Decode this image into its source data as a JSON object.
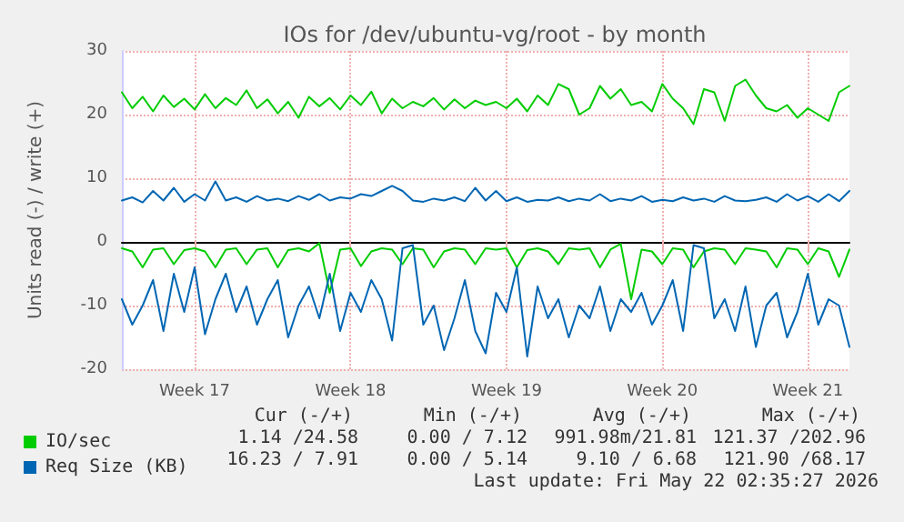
{
  "chart_data": {
    "type": "line",
    "title": "IOs for /dev/ubuntu-vg/root - by month",
    "ylabel": "Units read (-) / write (+)",
    "categories": [
      null,
      null,
      null,
      null,
      null,
      null,
      null,
      "Week 17",
      null,
      null,
      null,
      null,
      null,
      null,
      null,
      null,
      null,
      null,
      null,
      null,
      null,
      null,
      "Week 18",
      null,
      null,
      null,
      null,
      null,
      null,
      null,
      null,
      null,
      null,
      null,
      null,
      null,
      null,
      "Week 19",
      null,
      null,
      null,
      null,
      null,
      null,
      null,
      null,
      null,
      null,
      null,
      null,
      null,
      null,
      "Week 20",
      null,
      null,
      null,
      null,
      null,
      null,
      null,
      null,
      null,
      null,
      null,
      null,
      null,
      "Week 21",
      null,
      null,
      null,
      null
    ],
    "series": [
      {
        "name": "IO/sec",
        "color": "#00cc00",
        "values": [
          23.5,
          21,
          22.8,
          20.5,
          23,
          21.2,
          22.5,
          20.8,
          23.2,
          21,
          22.6,
          21.5,
          23.8,
          21,
          22.4,
          20.2,
          22,
          19.5,
          22.8,
          21.3,
          22.6,
          20.8,
          23,
          21.5,
          23.6,
          20.2,
          22.5,
          21,
          22,
          21.3,
          22.6,
          20.8,
          22.4,
          21,
          22.2,
          21.5,
          22,
          21,
          22.5,
          20.5,
          23,
          21.5,
          24.8,
          24,
          20,
          21,
          24.5,
          22.5,
          24,
          21.5,
          22,
          20.5,
          24.8,
          22.5,
          21,
          18.5,
          24,
          23.5,
          19,
          24.5,
          25.5,
          23,
          21,
          20.5,
          21.5,
          19.5,
          21,
          20,
          19,
          23.5,
          24.5
        ]
      },
      {
        "color": "#00cc00",
        "values": [
          -1,
          -1.5,
          -4,
          -1.2,
          -1,
          -3.5,
          -1.3,
          -1,
          -1.5,
          -4,
          -1.2,
          -1,
          -3.5,
          -1.2,
          -1,
          -4,
          -1.3,
          -1,
          -1.5,
          -0.2,
          -8,
          -1.2,
          -1,
          -3.8,
          -1.5,
          -1,
          -1.2,
          -3.5,
          -1,
          -1.2,
          -4,
          -1.5,
          -1,
          -1.2,
          -3.5,
          -1,
          -1.2,
          -1,
          -4,
          -1.3,
          -1,
          -1.5,
          -3.5,
          -1,
          -1.2,
          -1,
          -4,
          -1.2,
          -0.3,
          -9,
          -1.2,
          -1.5,
          -3.5,
          -1,
          -1.2,
          -4,
          -1.5,
          -1,
          -1.2,
          -3.5,
          -1,
          -1.2,
          -1.5,
          -4,
          -1,
          -1.2,
          -3.5,
          -1,
          -1.5,
          -5.5,
          -1.2
        ]
      },
      {
        "name": "Req Size (KB)",
        "color": "#0066b3",
        "values": [
          6.5,
          7,
          6.2,
          8,
          6.5,
          8.5,
          6.3,
          7.5,
          6.5,
          9.5,
          6.5,
          7,
          6.3,
          7.2,
          6.5,
          6.8,
          6.4,
          7.2,
          6.6,
          7.5,
          6.5,
          7,
          6.8,
          7.5,
          7.2,
          8,
          8.8,
          8,
          6.5,
          6.3,
          6.8,
          6.5,
          7,
          6.4,
          8.5,
          6.5,
          8,
          6.4,
          7,
          6.3,
          6.6,
          6.5,
          7,
          6.4,
          6.8,
          6.5,
          7.5,
          6.4,
          6.8,
          6.5,
          7.2,
          6.3,
          6.6,
          6.4,
          7,
          6.5,
          6.8,
          6.3,
          7.2,
          6.5,
          6.4,
          6.6,
          7,
          6.3,
          7.5,
          6.5,
          7.2,
          6.3,
          7.5,
          6.4,
          8
        ]
      },
      {
        "color": "#0066b3",
        "values": [
          -9,
          -13,
          -10,
          -6,
          -14,
          -5,
          -11,
          -4,
          -14.5,
          -9,
          -5,
          -11,
          -7,
          -13,
          -9,
          -6,
          -15,
          -10,
          -7,
          -12,
          -5,
          -14,
          -8,
          -11,
          -6,
          -9,
          -15.5,
          -1,
          -0.5,
          -13,
          -10,
          -17,
          -12,
          -6,
          -14,
          -17.5,
          -8,
          -11,
          -4,
          -18,
          -7,
          -12,
          -9,
          -15,
          -10,
          -12,
          -7,
          -14,
          -9,
          -11,
          -8,
          -13,
          -10,
          -6,
          -14,
          -0.5,
          -1,
          -12,
          -9,
          -14,
          -7,
          -16.5,
          -10,
          -8,
          -15,
          -11,
          -5,
          -13,
          -9,
          -10,
          -16.5
        ]
      }
    ],
    "ylim": [
      -20,
      30
    ],
    "yticks": [
      -20,
      -10,
      0,
      10,
      20,
      30
    ],
    "grid": true,
    "legend": "bottom left",
    "marker": "none",
    "line_style": "solid",
    "annotations": [
      "Cur (-/+)",
      "Min (-/+)",
      "Avg (-/+)",
      "Max (-/+)",
      "1.14 /24.58",
      "0.00 / 7.12",
      "991.98m/21.81",
      "121.37 /202.96",
      "16.23 / 7.91",
      "0.00 / 5.14",
      "9.10 / 6.68",
      "121.90 /68.17",
      "Last update: Fri May 22 02:35:27 2026"
    ]
  }
}
